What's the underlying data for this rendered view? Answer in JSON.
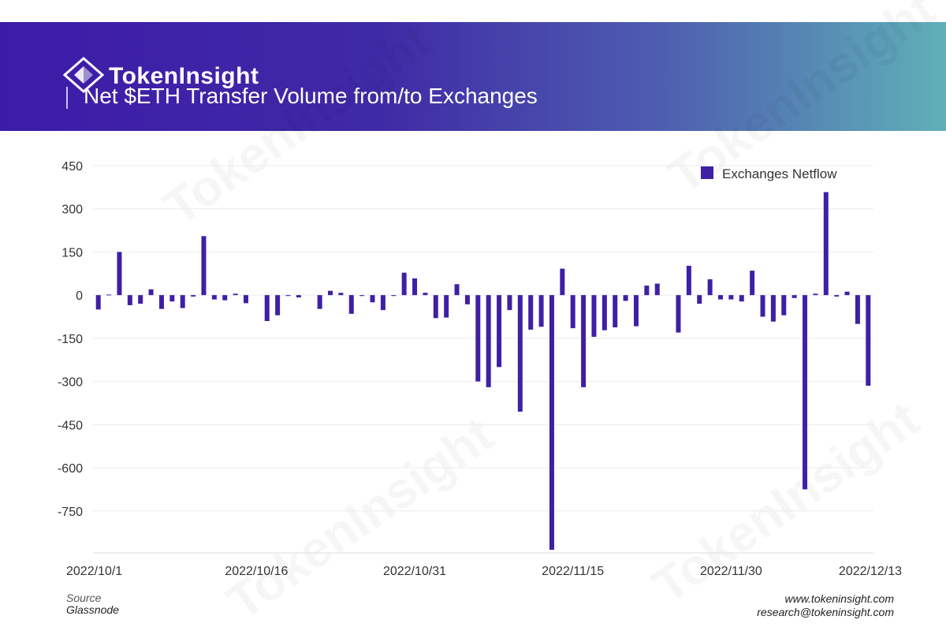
{
  "header": {
    "brand": "TokenInsight",
    "title": "Net $ETH Transfer Volume from/to Exchanges"
  },
  "footer": {
    "source_label": "Source",
    "source": "Glassnode",
    "website": "www.tokeninsight.com",
    "email": "research@tokeninsight.com"
  },
  "colors": {
    "bar": "#3f1fa6",
    "grid": "#ececec",
    "axis_text": "#333333"
  },
  "chart_data": {
    "type": "bar",
    "legend": {
      "label": "Exchanges Netflow",
      "position": "top-right"
    },
    "yticks": [
      450,
      300,
      150,
      0,
      -150,
      -300,
      -450,
      -600,
      -750
    ],
    "ylim": [
      -885,
      450
    ],
    "xtick_labels": [
      {
        "label": "2022/10/1",
        "index": 0
      },
      {
        "label": "2022/10/16",
        "index": 15
      },
      {
        "label": "2022/10/31",
        "index": 30
      },
      {
        "label": "2022/11/15",
        "index": 45
      },
      {
        "label": "2022/11/30",
        "index": 60
      },
      {
        "label": "2022/12/13",
        "index": 73
      }
    ],
    "grid": true,
    "series": [
      {
        "name": "Exchanges Netflow",
        "values": [
          -50,
          2,
          150,
          -35,
          -30,
          20,
          -48,
          -22,
          -45,
          -5,
          205,
          -15,
          -18,
          5,
          -28,
          0,
          -90,
          -70,
          -3,
          -8,
          0,
          -48,
          15,
          8,
          -65,
          -3,
          -25,
          -52,
          -3,
          78,
          58,
          8,
          -80,
          -78,
          38,
          -32,
          -300,
          -320,
          -250,
          -52,
          -405,
          -120,
          -110,
          -885,
          92,
          -115,
          -320,
          -145,
          -122,
          -112,
          -20,
          -108,
          33,
          40,
          0,
          -130,
          102,
          -30,
          55,
          -15,
          -15,
          -22,
          85,
          -75,
          -92,
          -70,
          -10,
          -675,
          5,
          358,
          -5,
          12,
          -100,
          -315
        ]
      }
    ]
  }
}
